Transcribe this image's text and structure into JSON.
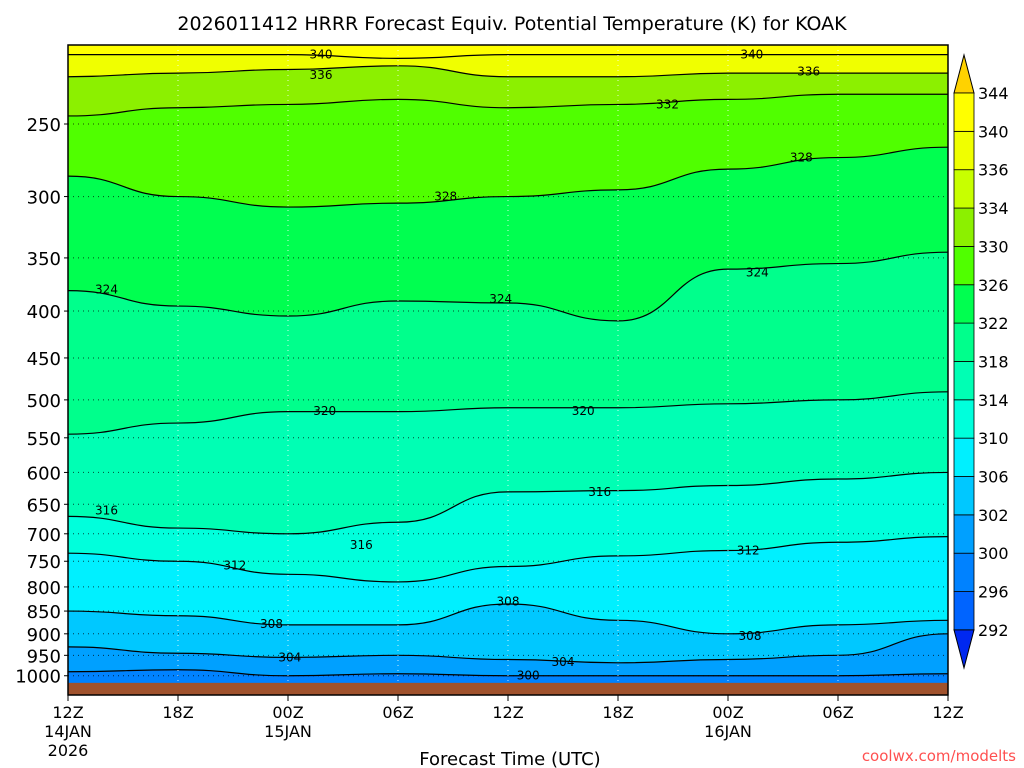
{
  "chart_data": {
    "type": "heatmap",
    "title": "2026011412 HRRR Forecast Equiv. Potential Temperature (K) for KOAK",
    "xlabel": "Forecast Time (UTC)",
    "ylabel": "",
    "credit": "coolwx.com/modelts",
    "x_hours": [
      0,
      6,
      12,
      18,
      24,
      30,
      36,
      42,
      48
    ],
    "x_tick_labels": [
      [
        "12Z",
        "14JAN",
        "2026"
      ],
      [
        "18Z"
      ],
      [
        "00Z",
        "15JAN"
      ],
      [
        "06Z"
      ],
      [
        "12Z"
      ],
      [
        "18Z"
      ],
      [
        "00Z",
        "16JAN"
      ],
      [
        "06Z"
      ],
      [
        "12Z"
      ]
    ],
    "y_ticks": [
      250,
      300,
      350,
      400,
      450,
      500,
      550,
      600,
      650,
      700,
      750,
      800,
      850,
      900,
      950,
      1000
    ],
    "ylim_hpa": [
      200,
      1050
    ],
    "y_scale": "log",
    "ground_pressure_hpa": 1018,
    "colorbar": {
      "levels": [
        292,
        296,
        300,
        302,
        306,
        310,
        314,
        318,
        322,
        326,
        330,
        334,
        336,
        340,
        344
      ],
      "colors": [
        "#0046ff",
        "#0064ff",
        "#0082ff",
        "#00a0ff",
        "#00c8ff",
        "#00f0ff",
        "#00ffdc",
        "#00ffb4",
        "#00ff8c",
        "#00ff50",
        "#50ff00",
        "#8cf000",
        "#c8ff00",
        "#f0ff00",
        "#ffff00"
      ],
      "under_color": "#0028f0",
      "over_color": "#ffd200"
    },
    "contours": [
      {
        "level": 340,
        "pressure_hpa": [
          210,
          210,
          210,
          212,
          210,
          210,
          210,
          210,
          210
        ]
      },
      {
        "level": 336,
        "pressure_hpa": [
          222,
          220,
          218,
          216,
          222,
          222,
          220,
          220,
          220
        ]
      },
      {
        "level": 332,
        "pressure_hpa": [
          245,
          240,
          238,
          235,
          240,
          238,
          235,
          232,
          232
        ]
      },
      {
        "level": 328,
        "pressure_hpa": [
          285,
          300,
          308,
          305,
          300,
          295,
          280,
          272,
          265
        ]
      },
      {
        "level": 324,
        "pressure_hpa": [
          380,
          395,
          405,
          390,
          392,
          410,
          360,
          355,
          345
        ]
      },
      {
        "level": 320,
        "pressure_hpa": [
          545,
          530,
          515,
          515,
          510,
          510,
          505,
          500,
          490
        ]
      },
      {
        "level": 316,
        "pressure_hpa": [
          670,
          690,
          700,
          680,
          630,
          628,
          620,
          610,
          600
        ]
      },
      {
        "level": 312,
        "pressure_hpa": [
          735,
          750,
          775,
          790,
          760,
          740,
          730,
          715,
          705
        ]
      },
      {
        "level": 308,
        "pressure_hpa": [
          850,
          860,
          880,
          880,
          835,
          870,
          900,
          880,
          870
        ]
      },
      {
        "level": 304,
        "pressure_hpa": [
          930,
          945,
          955,
          950,
          960,
          968,
          960,
          950,
          900
        ]
      },
      {
        "level": 300,
        "pressure_hpa": [
          990,
          985,
          1000,
          995,
          1000,
          1000,
          1000,
          1000,
          995
        ]
      }
    ],
    "contour_labels": [
      {
        "text": "340",
        "hour": 13.8,
        "p": 210
      },
      {
        "text": "340",
        "hour": 37.3,
        "p": 210
      },
      {
        "text": "336",
        "hour": 13.8,
        "p": 221
      },
      {
        "text": "336",
        "hour": 40.4,
        "p": 219
      },
      {
        "text": "332",
        "hour": 32.7,
        "p": 238
      },
      {
        "text": "328",
        "hour": 40.0,
        "p": 272
      },
      {
        "text": "328",
        "hour": 20.6,
        "p": 300
      },
      {
        "text": "324",
        "hour": 2.1,
        "p": 379
      },
      {
        "text": "324",
        "hour": 23.6,
        "p": 388
      },
      {
        "text": "324",
        "hour": 37.6,
        "p": 363
      },
      {
        "text": "320",
        "hour": 14.0,
        "p": 514
      },
      {
        "text": "320",
        "hour": 28.1,
        "p": 514
      },
      {
        "text": "316",
        "hour": 2.1,
        "p": 660
      },
      {
        "text": "316",
        "hour": 16.0,
        "p": 720
      },
      {
        "text": "316",
        "hour": 29.0,
        "p": 630
      },
      {
        "text": "312",
        "hour": 9.1,
        "p": 758
      },
      {
        "text": "312",
        "hour": 37.1,
        "p": 730
      },
      {
        "text": "308",
        "hour": 11.1,
        "p": 878
      },
      {
        "text": "308",
        "hour": 24.0,
        "p": 830
      },
      {
        "text": "308",
        "hour": 37.2,
        "p": 905
      },
      {
        "text": "304",
        "hour": 12.1,
        "p": 955
      },
      {
        "text": "304",
        "hour": 27.0,
        "p": 966
      },
      {
        "text": "300",
        "hour": 25.1,
        "p": 1000
      }
    ]
  }
}
